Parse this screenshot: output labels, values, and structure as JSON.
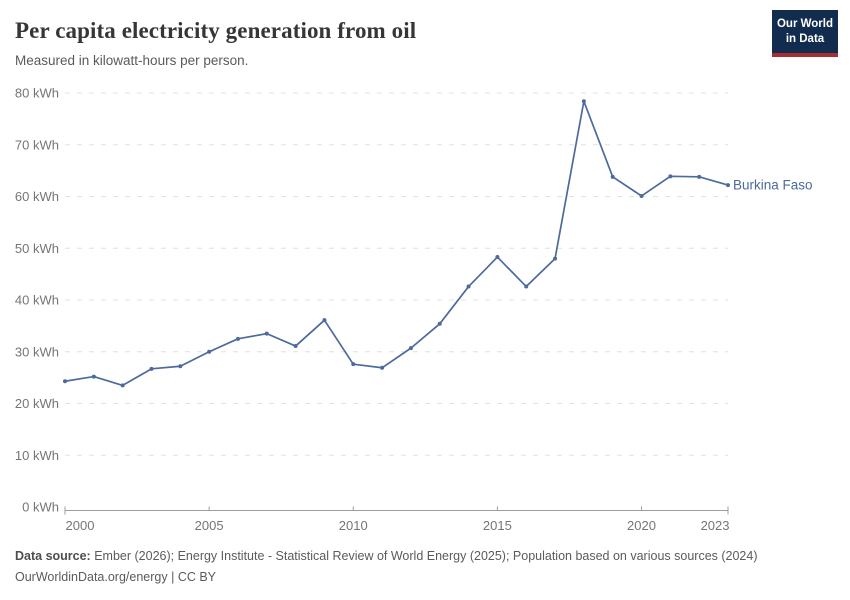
{
  "logo": {
    "line1": "Our World",
    "line2": "in Data"
  },
  "chart_data": {
    "type": "line",
    "title": "Per capita electricity generation from oil",
    "subtitle": "Measured in kilowatt-hours per person.",
    "xlabel": "",
    "ylabel": "",
    "unit": "kWh",
    "x": [
      2000,
      2001,
      2002,
      2003,
      2004,
      2005,
      2006,
      2007,
      2008,
      2009,
      2010,
      2011,
      2012,
      2013,
      2014,
      2015,
      2016,
      2017,
      2018,
      2019,
      2020,
      2021,
      2022,
      2023
    ],
    "series": [
      {
        "name": "Burkina Faso",
        "values": [
          24.3,
          25.2,
          23.5,
          26.7,
          27.2,
          30.0,
          32.5,
          33.5,
          31.1,
          36.1,
          27.6,
          26.9,
          30.7,
          35.4,
          42.6,
          48.3,
          42.6,
          48.0,
          78.4,
          63.8,
          60.1,
          63.9,
          63.8,
          62.2
        ]
      }
    ],
    "ylim": [
      0,
      80
    ],
    "ytick_step": 10,
    "ytick_labels": [
      "0 kWh",
      "10 kWh",
      "20 kWh",
      "30 kWh",
      "40 kWh",
      "50 kWh",
      "60 kWh",
      "70 kWh",
      "80 kWh"
    ],
    "xticks": [
      2000,
      2005,
      2010,
      2015,
      2020,
      2023
    ],
    "xtick_labels": [
      "2000",
      "2005",
      "2010",
      "2015",
      "2020",
      "2023"
    ],
    "grid": "horizontal-dashed",
    "legend_position": "end-of-line-label",
    "colors": {
      "line": "#4c6a9c",
      "entity_label": "#4c6a9c",
      "grid": "#e0e0e0",
      "axis": "#9c9c9c",
      "tick_text": "#757575"
    }
  },
  "footer": {
    "source_label": "Data source:",
    "source_text": " Ember (2026); Energy Institute - Statistical Review of World Energy (2025); Population based on various sources (2024)",
    "url_text": "OurWorldinData.org/energy",
    "license_text": " | CC BY"
  }
}
